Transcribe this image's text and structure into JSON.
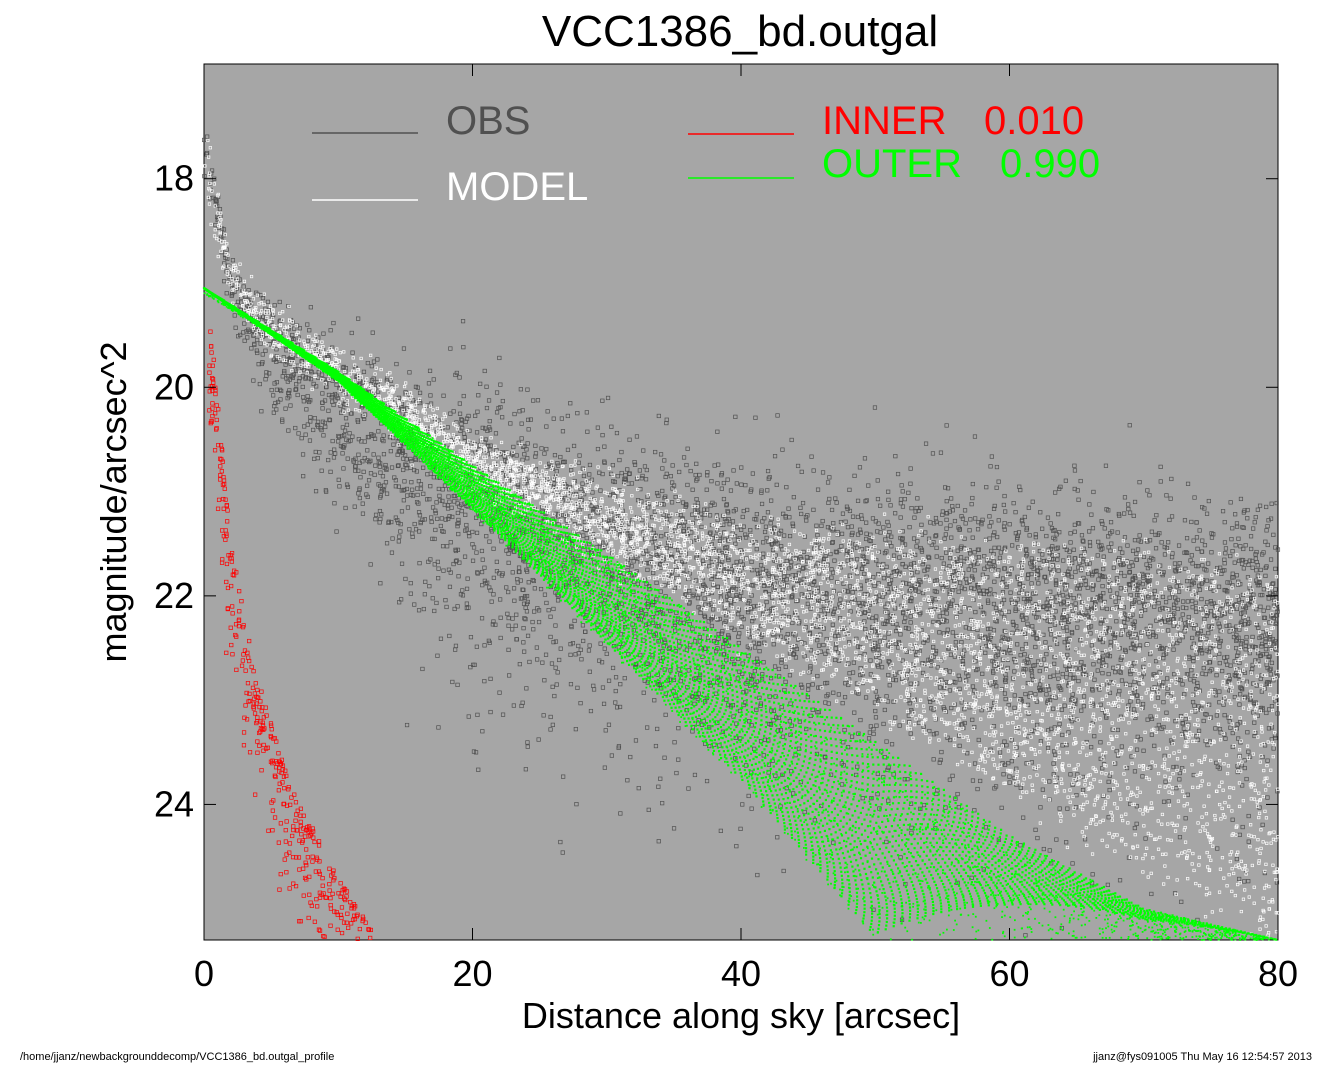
{
  "chart_data": {
    "type": "scatter",
    "title": "VCC1386_bd.outgal",
    "xlabel": "Distance along sky [arcsec]",
    "ylabel": "magnitude/arcsec^2",
    "xlim": [
      0,
      80
    ],
    "ylim": [
      25.3,
      16.9
    ],
    "y_inverted": true,
    "x_ticks": [
      "0",
      "20",
      "40",
      "60",
      "80"
    ],
    "y_ticks": [
      "18",
      "20",
      "22",
      "24"
    ],
    "grid": false,
    "background_color": "#a6a6a6",
    "legend": [
      {
        "name": "OBS",
        "color": "#505050"
      },
      {
        "name": "MODEL",
        "color": "#ffffff"
      }
    ],
    "components": [
      {
        "name": "INNER",
        "fraction": "0.010",
        "color": "#ff0000"
      },
      {
        "name": "OUTER",
        "fraction": "0.990",
        "color": "#00ff00"
      }
    ],
    "series": [
      {
        "name": "OBS",
        "color": "#505050",
        "description_points": [
          [
            0.3,
            17.7
          ],
          [
            2,
            18.9
          ],
          [
            5,
            19.4
          ],
          [
            10,
            19.8
          ],
          [
            20,
            20.6
          ],
          [
            30,
            21.0
          ],
          [
            40,
            21.4
          ],
          [
            60,
            21.6
          ],
          [
            80,
            21.8
          ]
        ],
        "scatter_spread_mag": 1.2
      },
      {
        "name": "MODEL",
        "color": "#ffffff",
        "description_points": [
          [
            0.3,
            18.2
          ],
          [
            2,
            19.0
          ],
          [
            5,
            19.4
          ],
          [
            10,
            19.9
          ],
          [
            20,
            20.8
          ],
          [
            40,
            22.3
          ],
          [
            60,
            23.8
          ],
          [
            80,
            25.3
          ]
        ],
        "scatter_spread_mag": 0.8
      },
      {
        "name": "INNER",
        "color": "#ff0000",
        "description_points": [
          [
            0.5,
            19.4
          ],
          [
            2,
            21.5
          ],
          [
            4,
            22.8
          ],
          [
            6,
            23.6
          ],
          [
            8,
            24.2
          ],
          [
            10,
            24.7
          ],
          [
            13,
            25.3
          ]
        ]
      },
      {
        "name": "OUTER",
        "color": "#00ff00",
        "description_points": [
          [
            0,
            19.05
          ],
          [
            10,
            19.85
          ],
          [
            20,
            20.75
          ],
          [
            30,
            21.6
          ],
          [
            40,
            22.5
          ],
          [
            50,
            23.4
          ],
          [
            60,
            24.3
          ],
          [
            70,
            25.0
          ],
          [
            80,
            25.3
          ]
        ],
        "lower_edge_points": [
          [
            0,
            19.05
          ],
          [
            10,
            19.95
          ],
          [
            20,
            21.2
          ],
          [
            30,
            22.5
          ],
          [
            40,
            23.8
          ],
          [
            50,
            25.3
          ]
        ]
      }
    ]
  },
  "footer": {
    "left": "/home/jjanz/newbackgrounddecomp/VCC1386_bd.outgal_profile",
    "right": "jjanz@fys091005  Thu May 16 12:54:57 2013"
  }
}
